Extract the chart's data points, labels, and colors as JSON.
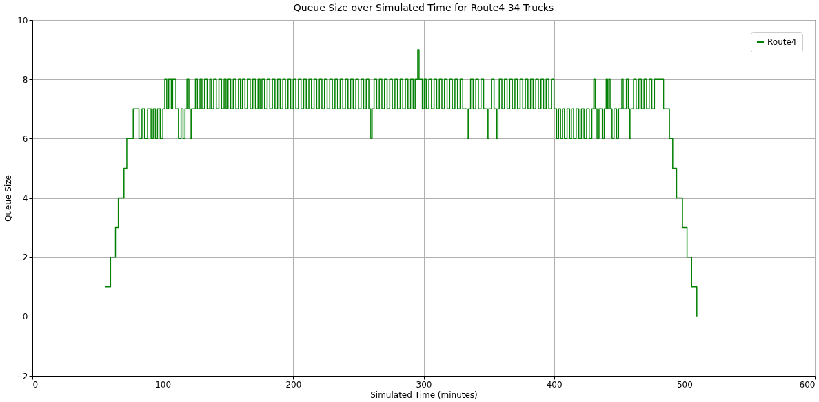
{
  "chart_data": {
    "type": "step",
    "title": "Queue Size over Simulated Time for Route4 34 Trucks",
    "xlabel": "Simulated Time (minutes)",
    "ylabel": "Queue Size",
    "xlim": [
      0,
      600
    ],
    "xticks": [
      0,
      100,
      200,
      300,
      400,
      500,
      600
    ],
    "ylim": [
      -2,
      10
    ],
    "yticks": [
      {
        "value": -2,
        "label": "−2"
      },
      0,
      2,
      4,
      6,
      8,
      10
    ],
    "grid": true,
    "legend": "top right",
    "line_style": "solid",
    "marker": "none",
    "series": [
      {
        "name": "Route4",
        "color": "#008000",
        "x": [
          55.5,
          59.9,
          63.7,
          65.9,
          70.2,
          72.4,
          77.3,
          81.7,
          84,
          86,
          88.3,
          91,
          92.6,
          94.3,
          95.9,
          98,
          100,
          101.5,
          103,
          104.5,
          106.5,
          107.5,
          110,
          112,
          114,
          115.5,
          117,
          118.5,
          120,
          121,
          122,
          125,
          126.5,
          128.5,
          130,
          132,
          134,
          136,
          137,
          139,
          141,
          143,
          145,
          147,
          148.5,
          150,
          152,
          154,
          156,
          158,
          159.5,
          161,
          163,
          165,
          167,
          169,
          171,
          173,
          174.5,
          176,
          178,
          180,
          182,
          184,
          186,
          188,
          190,
          192,
          194,
          196,
          198,
          200,
          202,
          204,
          206,
          208,
          210,
          212,
          214,
          216,
          218,
          220,
          222,
          224,
          226,
          228,
          230,
          232,
          234,
          236,
          238,
          240,
          242,
          244,
          246,
          248,
          250,
          252,
          254,
          256,
          258,
          259.5,
          260.5,
          262,
          264,
          266,
          268,
          270,
          272,
          274,
          276,
          278,
          280,
          282,
          284,
          286,
          288,
          290,
          292,
          293.5,
          295.5,
          296.5,
          299,
          300.5,
          302,
          304,
          306,
          308,
          310,
          312,
          314,
          316,
          318,
          320,
          322,
          324,
          326,
          328,
          330,
          333.5,
          334.5,
          336,
          338,
          340,
          342,
          344,
          346,
          349,
          350,
          352,
          354,
          356,
          357,
          358,
          360,
          362,
          364,
          366,
          368,
          370,
          372,
          374,
          376,
          378,
          380,
          382,
          384,
          386,
          388,
          390,
          392,
          394,
          396,
          398,
          400,
          402,
          403.5,
          405,
          406.5,
          408,
          410,
          412,
          413.5,
          415,
          417,
          419,
          421,
          423,
          425,
          427,
          429,
          430.5,
          431.5,
          433,
          434.5,
          437,
          438.5,
          440,
          441,
          442,
          443,
          444.5,
          446,
          448,
          449.5,
          452,
          453,
          455.5,
          457,
          458,
          459,
          461,
          463,
          465,
          467,
          469,
          471,
          473,
          475,
          477,
          484,
          488.5,
          491,
          494,
          498.5,
          502,
          505.5,
          509.5
        ],
        "values": [
          1,
          2,
          3,
          4,
          5,
          6,
          7,
          6,
          7,
          6,
          7,
          6,
          7,
          6,
          7,
          6,
          7,
          8,
          7,
          8,
          7,
          8,
          7,
          6,
          7,
          6,
          7,
          8,
          7,
          6,
          7,
          8,
          7,
          8,
          7,
          8,
          7,
          8,
          7,
          8,
          7,
          8,
          7,
          8,
          7,
          8,
          7,
          8,
          7,
          8,
          7,
          8,
          7,
          8,
          7,
          8,
          7,
          8,
          7,
          8,
          7,
          8,
          7,
          8,
          7,
          8,
          7,
          8,
          7,
          8,
          7,
          8,
          7,
          8,
          7,
          8,
          7,
          8,
          7,
          8,
          7,
          8,
          7,
          8,
          7,
          8,
          7,
          8,
          7,
          8,
          7,
          8,
          7,
          8,
          7,
          8,
          7,
          8,
          7,
          8,
          7,
          6,
          7,
          8,
          7,
          8,
          7,
          8,
          7,
          8,
          7,
          8,
          7,
          8,
          7,
          8,
          7,
          8,
          7,
          8,
          9,
          8,
          7,
          8,
          7,
          8,
          7,
          8,
          7,
          8,
          7,
          8,
          7,
          8,
          7,
          8,
          7,
          8,
          7,
          6,
          7,
          8,
          7,
          8,
          7,
          8,
          7,
          6,
          7,
          8,
          7,
          6,
          7,
          8,
          7,
          8,
          7,
          8,
          7,
          8,
          7,
          8,
          7,
          8,
          7,
          8,
          7,
          8,
          7,
          8,
          7,
          8,
          7,
          8,
          7,
          6,
          7,
          6,
          7,
          6,
          7,
          6,
          7,
          6,
          7,
          6,
          7,
          6,
          7,
          6,
          7,
          8,
          7,
          6,
          7,
          6,
          7,
          8,
          7,
          8,
          7,
          6,
          7,
          6,
          7,
          8,
          7,
          8,
          7,
          6,
          7,
          8,
          7,
          8,
          7,
          8,
          7,
          8,
          7,
          8,
          7,
          6,
          5,
          4,
          3,
          2,
          1,
          0
        ]
      }
    ]
  }
}
